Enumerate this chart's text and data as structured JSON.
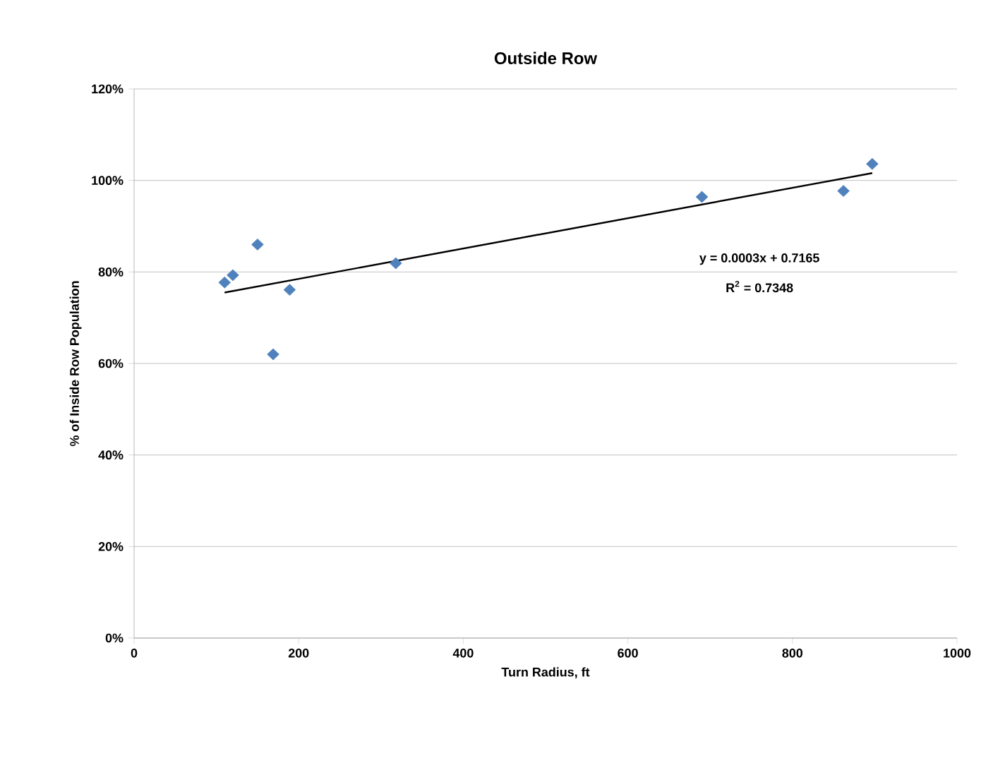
{
  "chart_data": {
    "type": "scatter",
    "title": "Outside Row",
    "xlabel": "Turn Radius, ft",
    "ylabel": "% of Inside Row Population",
    "xlim": [
      0,
      1000
    ],
    "xticks": [
      0,
      200,
      400,
      600,
      800,
      1000
    ],
    "ylim": [
      0,
      120
    ],
    "yticks": [
      {
        "value": 0,
        "label": "0%"
      },
      {
        "value": 20,
        "label": "20%"
      },
      {
        "value": 40,
        "label": "40%"
      },
      {
        "value": 60,
        "label": "60%"
      },
      {
        "value": 80,
        "label": "80%"
      },
      {
        "value": 100,
        "label": "100%"
      },
      {
        "value": 120,
        "label": "120%"
      }
    ],
    "grid": "y",
    "series": [
      {
        "marker": "diamond",
        "color": "#4f81bd",
        "x": [
          110,
          120,
          150,
          169,
          189,
          318,
          690,
          862,
          897
        ],
        "values": [
          77.7,
          79.3,
          86.0,
          62.0,
          76.1,
          81.9,
          96.4,
          97.7,
          103.6
        ]
      },
      {
        "type": "line",
        "marker": "none",
        "color": "#000000",
        "x": [
          110,
          897
        ],
        "values": [
          75.5,
          101.6
        ]
      }
    ],
    "annotations": [
      "y = 0.0003x + 0.7165",
      "R$^{2}$ = 0.7348"
    ]
  }
}
